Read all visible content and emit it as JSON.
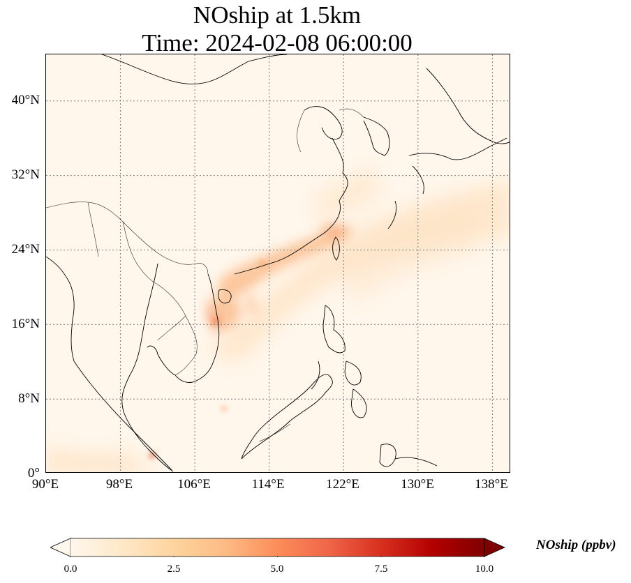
{
  "title": {
    "line1": "NOship at 1.5km",
    "line2": "Time: 2024-02-08 06:00:00"
  },
  "map": {
    "variable": "NOship",
    "level": "1.5km",
    "projection": "PlateCarree",
    "extent": {
      "lon": [
        90,
        140
      ],
      "lat": [
        0,
        45
      ]
    },
    "gridlines": "dotted",
    "lat_ticks": [
      0,
      8,
      16,
      24,
      32,
      40
    ],
    "lat_labels": [
      "0°",
      "8°N",
      "16°N",
      "24°N",
      "32°N",
      "40°N"
    ],
    "lon_ticks": [
      90,
      98,
      106,
      114,
      122,
      130,
      138
    ],
    "lon_labels": [
      "90°E",
      "98°E",
      "106°E",
      "114°E",
      "122°E",
      "130°E",
      "138°E"
    ],
    "background_color": "#fff7ec",
    "features": [
      "coastlines",
      "borders"
    ]
  },
  "colorbar": {
    "label": "NOship (ppbv)",
    "cmap": "OrRd",
    "range": [
      0,
      10
    ],
    "extend": "both",
    "ticks": [
      "0.0",
      "2.5",
      "5.0",
      "7.5",
      "10.0"
    ],
    "tick_values": [
      0,
      2.5,
      5.0,
      7.5,
      10.0
    ],
    "colors": [
      "#fff7ec",
      "#fee8c8",
      "#fdd49e",
      "#fdbb84",
      "#fc8d59",
      "#ef6548",
      "#d7301f",
      "#b30000",
      "#7f0000"
    ]
  }
}
